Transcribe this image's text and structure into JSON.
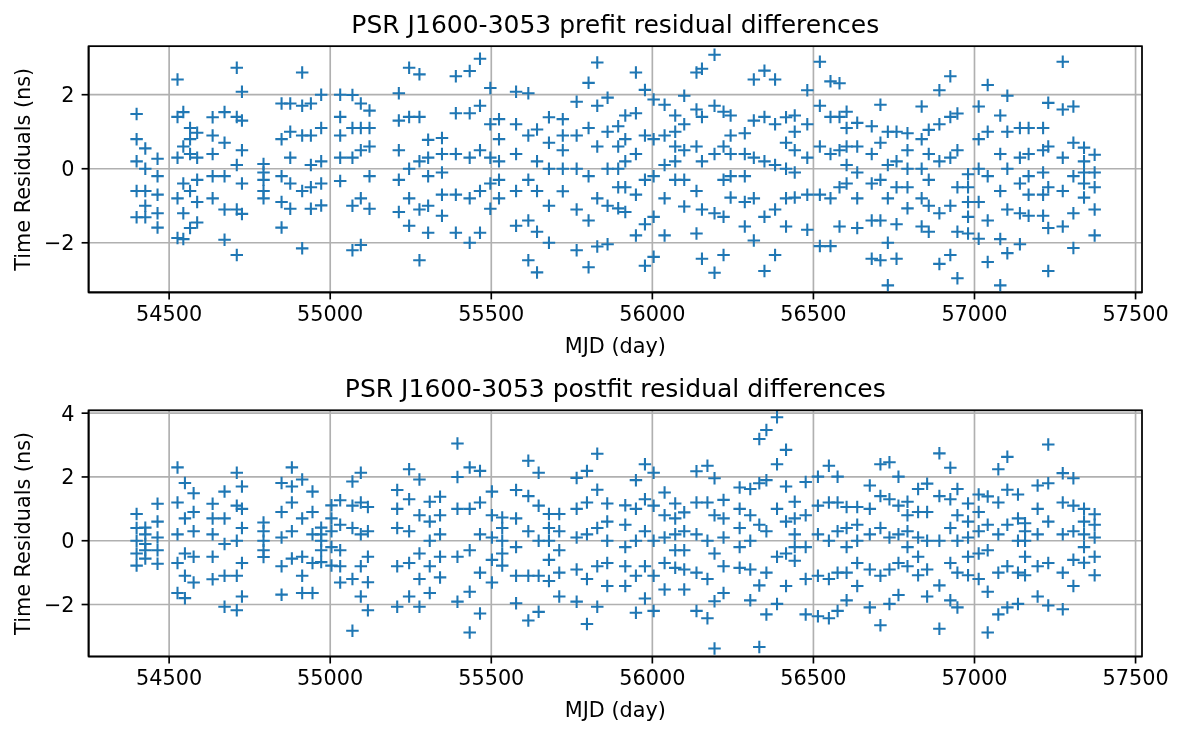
{
  "chart_data": [
    {
      "type": "scatter",
      "title": "PSR J1600-3053 prefit residual differences",
      "xlabel": "MJD (day)",
      "ylabel": "Time Residuals (ns)",
      "color": "#1f77b4",
      "marker": "cross",
      "grid": true,
      "xlim": [
        54250,
        57520
      ],
      "ylim": [
        -3.34,
        3.31
      ],
      "xticks": [
        54500,
        55000,
        55500,
        56000,
        56500,
        57000,
        57500
      ],
      "yticks": [
        {
          "value": -2,
          "label": "−2"
        },
        0,
        2
      ],
      "x": [
        54399,
        54426,
        54464,
        54526,
        54544,
        54565,
        54587,
        54635,
        54672,
        54710,
        54726,
        54793,
        54849,
        54876,
        54913,
        54940,
        54972,
        55031,
        55069,
        55095,
        55122,
        55213,
        55245,
        55277,
        55304,
        55347,
        55390,
        55433,
        55465,
        55497,
        55524,
        55577,
        55615,
        55642,
        55679,
        55722,
        55765,
        55802,
        55829,
        55861,
        55894,
        55916,
        55949,
        55977,
        56004,
        56038,
        56071,
        56099,
        56137,
        56154,
        56193,
        56221,
        56243,
        56287,
        56315,
        56348,
        56381,
        56415,
        56442,
        56481,
        56520,
        56553,
        56581,
        56603,
        56636,
        56681,
        56708,
        56731,
        56758,
        56792,
        56836,
        56858,
        56891,
        56925,
        56947,
        56980,
        57013,
        57041,
        57080,
        57102,
        57141,
        57168,
        57213,
        57229,
        57274,
        57307,
        57340,
        57373,
        54399,
        54426,
        54464,
        54526,
        54544,
        54565,
        54587,
        54635,
        54672,
        54710,
        54726,
        54793,
        54849,
        54876,
        54913,
        54940,
        54972,
        55031,
        55069,
        55095,
        55122,
        55213,
        55245,
        55277,
        55304,
        55347,
        55390,
        55433,
        55465,
        55497,
        55524,
        55577,
        55615,
        55642,
        55679,
        55722,
        55765,
        55802,
        55829,
        55861,
        55894,
        55916,
        55949,
        55977,
        56004,
        56038,
        56071,
        56099,
        56137,
        56154,
        56193,
        56221,
        56243,
        56287,
        56315,
        56348,
        56381,
        56415,
        56442,
        56481,
        56520,
        56553,
        56581,
        56603,
        56636,
        56681,
        56708,
        56731,
        56758,
        56792,
        56836,
        56858,
        56891,
        56925,
        56947,
        56980,
        57013,
        57041,
        57080,
        57102,
        57141,
        57168,
        57213,
        57229,
        57274,
        57307,
        57340,
        57373,
        54399,
        54426,
        54464,
        54526,
        54544,
        54565,
        54587,
        54635,
        54672,
        54710,
        54726,
        54793,
        54849,
        54876,
        54913,
        54940,
        54972,
        55031,
        55069,
        55095,
        55122,
        55213,
        55245,
        55277,
        55304,
        55347,
        55390,
        55433,
        55465,
        55497,
        55524,
        55577,
        55615,
        55642,
        55679,
        55722,
        55765,
        55802,
        55829,
        55861,
        55894,
        55916,
        55949,
        55977,
        56004,
        56038,
        56071,
        56099,
        56137,
        56154,
        56193,
        56221,
        56243,
        56287,
        56315,
        56348,
        56381,
        56415,
        56442,
        56481,
        56520,
        56553,
        56581,
        56603,
        56636,
        56681,
        56708,
        56731,
        56758,
        56792,
        56836,
        56858,
        56891,
        56925,
        56947,
        56980,
        57013,
        57041,
        57080,
        57102,
        57141,
        57168,
        57213,
        57229,
        57274,
        57307,
        57340,
        57373,
        54399,
        54426,
        54464,
        54526,
        54544,
        54565,
        54587,
        54635,
        54672,
        54710,
        54726,
        54793,
        54849,
        54876,
        54913,
        54940,
        54972,
        55031,
        55069,
        55095,
        55122,
        55213,
        55245,
        55277,
        55304,
        55347,
        55390,
        55433,
        55465,
        55497,
        55524,
        55577,
        55615,
        55642,
        55679,
        55722,
        55765,
        55802,
        55829,
        55861,
        55894,
        55916,
        55949,
        55977,
        56004,
        56038,
        56071,
        56099,
        56137,
        56154,
        56193,
        56221,
        56243,
        56287,
        56315,
        56348,
        56381,
        56415,
        56442,
        56481,
        56520,
        56553,
        56581,
        56603,
        56636,
        56681,
        56708,
        56731,
        56758,
        56792,
        56836,
        56858,
        56891,
        56925,
        56947,
        56980,
        57013,
        57041,
        57080,
        57102,
        57141,
        57168,
        57213,
        57229,
        57274,
        57307,
        57340,
        57373,
        54399,
        54426,
        54464,
        54526,
        54544,
        54565,
        54587,
        54635,
        54672,
        54710,
        54726,
        54793,
        54849,
        54876,
        54913,
        54940,
        54972,
        55031,
        55069,
        55095,
        55122,
        55213,
        55245,
        55277,
        55304,
        55347,
        55390,
        55433,
        55465,
        55497,
        55524,
        55577,
        55615,
        55642,
        55679,
        55722,
        55765,
        55802,
        55829,
        55861,
        55894,
        55916,
        55949,
        55977,
        56004,
        56038,
        56071,
        56099,
        56137,
        56154,
        56193,
        56221,
        56243,
        56287,
        56315,
        56348,
        56381,
        56415,
        56442,
        56481,
        56520,
        56553,
        56581,
        56603,
        56636,
        56681,
        56708,
        56731,
        56758,
        56792,
        56836,
        56858,
        56891,
        56925,
        56947,
        56980,
        57013,
        57041,
        57080,
        57102,
        57141,
        57168,
        57213,
        57229,
        57274,
        57307,
        57340,
        57373
      ],
      "values": [
        1.48,
        0.55,
        0.27,
        2.41,
        1.53,
        1.1,
        0.97,
        1.39,
        1.53,
        2.73,
        2.08,
        0.13,
        1.76,
        1.76,
        2.6,
        1.76,
        2.0,
        2.0,
        1.99,
        1.76,
        1.57,
        2.04,
        2.73,
        2.55,
        0.78,
        0.83,
        2.5,
        2.64,
        2.97,
        2.18,
        1.34,
        2.08,
        2.04,
        1.06,
        1.39,
        1.34,
        1.81,
        2.32,
        2.87,
        1.92,
        1.15,
        1.44,
        2.6,
        2.13,
        1.87,
        1.73,
        1.44,
        1.97,
        2.6,
        2.7,
        3.08,
        1.54,
        1.44,
        0.96,
        2.41,
        2.65,
        2.41,
        1.39,
        1.44,
        2.12,
        2.89,
        2.36,
        2.31,
        1.54,
        1.24,
        1.15,
        1.73,
        1.0,
        1.0,
        0.96,
        1.68,
        1.05,
        2.12,
        2.5,
        1.49,
        -0.15,
        1.68,
        2.26,
        1.44,
        1.97,
        1.1,
        1.1,
        1.1,
        1.78,
        2.89,
        1.68,
        0.57,
        0.38,
        0.8,
        0.0,
        -0.2,
        1.4,
        0.6,
        0.8,
        0.3,
        0.9,
        0.7,
        1.4,
        1.3,
        -0.1,
        0.8,
        1.0,
        1.7,
        0.9,
        1.1,
        1.4,
        1.1,
        1.1,
        1.1,
        1.3,
        1.4,
        1.4,
        0.3,
        0.4,
        1.5,
        1.5,
        1.7,
        1.2,
        0.8,
        1.2,
        0.9,
        0.2,
        0.7,
        0.9,
        0.9,
        1.1,
        1.7,
        1.0,
        0.6,
        0.8,
        1.5,
        0.9,
        0.8,
        0.9,
        1.0,
        1.2,
        1.6,
        1.4,
        1.7,
        0.6,
        0.9,
        0.4,
        1.3,
        1.4,
        1.2,
        0.7,
        1.0,
        1.2,
        1.7,
        1.4,
        1.4,
        1.1,
        0.6,
        0.4,
        0.7,
        0.1,
        0.2,
        0.5,
        0.8,
        0.4,
        1.2,
        1.4,
        0.5,
        -0.5,
        0.8,
        1.0,
        0.4,
        1.0,
        0.3,
        0.4,
        0.5,
        0.6,
        1.6,
        0.7,
        0.2,
        -0.1,
        0.2,
        -0.6,
        -0.7,
        0.3,
        -0.4,
        0.4,
        -0.3,
        0.4,
        -0.2,
        0.1,
        0.5,
        -0.3,
        -0.2,
        0.3,
        0.9,
        0.1,
        0.2,
        0.9,
        0.3,
        0.5,
        0.6,
        0.5,
        0.0,
        0.2,
        -0.2,
        -0.1,
        0.4,
        0.3,
        0.5,
        0.3,
        0.2,
        0.4,
        -0.3,
        -0.6,
        0.0,
        0.5,
        0.0,
        -0.2,
        0.6,
        0.0,
        0.0,
        0.2,
        0.4,
        -0.3,
        -0.2,
        0.1,
        0.6,
        0.5,
        0.6,
        0.2,
        0.4,
        -0.3,
        0.4,
        -0.2,
        0.3,
        0.2,
        0.1,
        0.0,
        0.5,
        0.3,
        0.6,
        0.4,
        0.5,
        0.6,
        -0.1,
        -0.4,
        -0.3,
        -0.8,
        -0.5,
        0.0,
        0.0,
        -0.3,
        0.2,
        0.3,
        -0.5,
        -0.9,
        0.0,
        -0.2,
        -0.6,
        0.0,
        -0.4,
        -0.2,
        -0.1,
        -0.5,
        0.3,
        -0.2,
        -0.1,
        -0.5,
        -0.6,
        -1.0,
        -1.2,
        -0.8,
        -1.2,
        -0.6,
        -0.9,
        -0.2,
        -1.1,
        -1.1,
        -0.4,
        -0.6,
        -0.9,
        -0.4,
        -0.6,
        -0.5,
        -0.4,
        0.3,
        -1.0,
        -0.8,
        -0.2,
        -0.3,
        -0.8,
        -1.1,
        -1.0,
        -0.7,
        -0.7,
        -0.8,
        -0.6,
        -0.4,
        -0.3,
        -0.6,
        -1.4,
        -1.7,
        -1.0,
        0.0,
        -1.1,
        -1.4,
        -0.8,
        -1.0,
        -0.5,
        -0.5,
        -0.7,
        -1.5,
        -1.3,
        -0.8,
        0.2,
        -0.3,
        -0.6,
        -1.1,
        -1.2,
        -1.3,
        -0.2,
        -0.9,
        -0.8,
        -1.3,
        -1.1,
        -0.8,
        -0.1,
        -0.7,
        -0.7,
        -0.8,
        -0.5,
        0.1,
        -0.8,
        -1.4,
        -1.4,
        -2.0,
        -1.5,
        -0.5,
        -0.8,
        -1.0,
        -1.2,
        -1.0,
        -1.7,
        -1.3,
        -0.9,
        -1.4,
        -1.9,
        -1.1,
        -1.2,
        -0.7,
        -0.7,
        -1.6,
        -0.6,
        -1.2,
        -0.4,
        -1.1,
        -1.31,
        -1.31,
        -1.59,
        -1.87,
        -1.9,
        -1.6,
        -1.45,
        -0.8,
        -1.92,
        -2.33,
        -1.22,
        -0.8,
        -1.59,
        -1.08,
        -2.15,
        -1.08,
        -0.99,
        -0.33,
        -2.2,
        -2.06,
        -1.08,
        -1.17,
        -1.54,
        -2.47,
        -1.73,
        -1.27,
        -1.73,
        -2.0,
        -1.73,
        -1.08,
        -0.8,
        -1.54,
        -2.47,
        -2.8,
        -2.0,
        -0.61,
        -2.2,
        -2.66,
        -2.1,
        -2.04,
        -1.07,
        -1.17,
        -1.8,
        -2.62,
        -2.38,
        -1.8,
        -0.3,
        -1.02,
        -1.75,
        -2.43,
        -2.81,
        -2.33,
        -0.78,
        -1.56,
        -1.94,
        -2.76,
        -2.33,
        -1.56,
        -0.78,
        -1.65,
        -2.09,
        -2.09,
        -1.56,
        -0.4,
        -1.6,
        -2.43,
        -2.47,
        -3.15,
        -2.43,
        -1.07,
        -1.56,
        -1.7,
        -2.57,
        -2.33,
        -2.96,
        -1.75,
        -1.89,
        -2.52,
        -3.15,
        -2.28,
        -2.04,
        -1.27,
        -1.27,
        -2.76,
        -1.56,
        -2.14,
        -0.78,
        -1.8
      ]
    },
    {
      "type": "scatter",
      "title": "PSR J1600-3053 postfit residual differences",
      "xlabel": "MJD (day)",
      "ylabel": "Time Residuals (ns)",
      "color": "#1f77b4",
      "marker": "cross",
      "grid": true,
      "xlim": [
        54250,
        57520
      ],
      "ylim": [
        -3.63,
        4.09
      ],
      "xticks": [
        54500,
        55000,
        55500,
        56000,
        56500,
        57000,
        57500
      ],
      "yticks": [
        {
          "value": -2,
          "label": "−2"
        },
        0,
        2,
        4
      ],
      "x": [
        54399,
        54426,
        54464,
        54526,
        54549,
        54576,
        54635,
        54672,
        54710,
        54726,
        54793,
        54849,
        54881,
        54913,
        54945,
        54972,
        55004,
        55031,
        55069,
        55095,
        55117,
        55208,
        55245,
        55277,
        55309,
        55341,
        55395,
        55433,
        55465,
        55502,
        55534,
        55577,
        55615,
        55647,
        55679,
        55711,
        55765,
        55797,
        55829,
        55860,
        55916,
        55949,
        55977,
        56004,
        56038,
        56071,
        56099,
        56137,
        56171,
        56193,
        56221,
        56271,
        56304,
        56332,
        56354,
        56387,
        56415,
        56442,
        56476,
        56514,
        56548,
        56575,
        56603,
        56636,
        56675,
        56708,
        56736,
        56764,
        56792,
        56825,
        56853,
        56891,
        56925,
        56947,
        56980,
        57013,
        57041,
        57074,
        57102,
        57135,
        57157,
        57196,
        57229,
        57274,
        57307,
        57340,
        57373,
        54399,
        54426,
        54464,
        54526,
        54549,
        54576,
        54635,
        54672,
        54710,
        54726,
        54793,
        54849,
        54881,
        54913,
        54945,
        54972,
        55004,
        55031,
        55069,
        55095,
        55117,
        55208,
        55245,
        55277,
        55309,
        55341,
        55395,
        55433,
        55465,
        55502,
        55534,
        55577,
        55615,
        55647,
        55679,
        55711,
        55765,
        55797,
        55829,
        55860,
        55916,
        55949,
        55977,
        56004,
        56038,
        56071,
        56099,
        56137,
        56171,
        56193,
        56221,
        56271,
        56304,
        56332,
        56354,
        56387,
        56415,
        56442,
        56476,
        56514,
        56548,
        56575,
        56603,
        56636,
        56675,
        56708,
        56736,
        56764,
        56792,
        56825,
        56853,
        56891,
        56925,
        56947,
        56980,
        57013,
        57041,
        57074,
        57102,
        57135,
        57157,
        57196,
        57229,
        57274,
        57307,
        57340,
        57373,
        54399,
        54426,
        54464,
        54526,
        54549,
        54576,
        54635,
        54672,
        54710,
        54726,
        54793,
        54849,
        54881,
        54913,
        54945,
        54972,
        55004,
        55031,
        55069,
        55095,
        55117,
        55208,
        55245,
        55277,
        55309,
        55341,
        55395,
        55433,
        55465,
        55502,
        55534,
        55577,
        55615,
        55647,
        55679,
        55711,
        55765,
        55797,
        55829,
        55860,
        55916,
        55949,
        55977,
        56004,
        56038,
        56071,
        56099,
        56137,
        56171,
        56193,
        56221,
        56271,
        56304,
        56332,
        56354,
        56387,
        56415,
        56442,
        56476,
        56514,
        56548,
        56575,
        56603,
        56636,
        56675,
        56708,
        56736,
        56764,
        56792,
        56825,
        56853,
        56891,
        56925,
        56947,
        56980,
        57013,
        57041,
        57074,
        57102,
        57135,
        57157,
        57196,
        57229,
        57274,
        57307,
        57340,
        57373,
        54399,
        54426,
        54464,
        54526,
        54549,
        54576,
        54635,
        54672,
        54710,
        54726,
        54793,
        54849,
        54881,
        54913,
        54945,
        54972,
        55004,
        55031,
        55069,
        55095,
        55117,
        55208,
        55245,
        55277,
        55309,
        55341,
        55395,
        55433,
        55465,
        55502,
        55534,
        55577,
        55615,
        55647,
        55679,
        55711,
        55765,
        55797,
        55829,
        55860,
        55916,
        55949,
        55977,
        56004,
        56038,
        56071,
        56099,
        56137,
        56171,
        56193,
        56221,
        56271,
        56304,
        56332,
        56354,
        56387,
        56415,
        56442,
        56476,
        56514,
        56548,
        56575,
        56603,
        56636,
        56675,
        56708,
        56736,
        56764,
        56792,
        56825,
        56853,
        56891,
        56925,
        56947,
        56980,
        57013,
        57041,
        57074,
        57102,
        57135,
        57157,
        57196,
        57229,
        57274,
        57307,
        57340,
        57373,
        54399,
        54426,
        54464,
        54526,
        54549,
        54576,
        54635,
        54672,
        54710,
        54726,
        54793,
        54849,
        54881,
        54913,
        54945,
        54972,
        55004,
        55031,
        55069,
        55095,
        55117,
        55208,
        55245,
        55277,
        55309,
        55341,
        55395,
        55433,
        55465,
        55502,
        55534,
        55577,
        55615,
        55647,
        55679,
        55711,
        55765,
        55797,
        55829,
        55860,
        55916,
        55949,
        55977,
        56004,
        56038,
        56071,
        56099,
        56137,
        56171,
        56193,
        56221,
        56271,
        56304,
        56332,
        56354,
        56387,
        56415,
        56442,
        56476,
        56514,
        56548,
        56575,
        56603,
        56636,
        56675,
        56708,
        56736,
        56764,
        56792,
        56825,
        56853,
        56891,
        56925,
        56947,
        56980,
        57013,
        57041,
        57074,
        57102,
        57135,
        57157,
        57196,
        57229,
        57274,
        57307,
        57340,
        57373
      ],
      "values": [
        0.84,
        0.41,
        1.16,
        2.3,
        1.81,
        1.49,
        1.16,
        1.54,
        2.13,
        1.7,
        0.57,
        1.81,
        2.3,
        1.92,
        1.54,
        0.41,
        1.11,
        1.27,
        1.86,
        2.13,
        1.06,
        1.59,
        2.24,
        1.92,
        1.22,
        1.38,
        3.05,
        2.3,
        2.19,
        1.54,
        0.73,
        1.59,
        2.51,
        2.13,
        0.84,
        0.84,
        1.97,
        2.19,
        2.73,
        1.17,
        1.11,
        1.9,
        2.4,
        2.13,
        1.51,
        1.17,
        0.89,
        2.18,
        2.35,
        1.96,
        1.28,
        1.67,
        1.62,
        3.19,
        3.47,
        3.87,
        2.85,
        1.22,
        1.84,
        2.01,
        2.35,
        2.01,
        1.06,
        1.06,
        1.73,
        2.4,
        2.46,
        2.01,
        1.22,
        1.62,
        1.79,
        2.74,
        2.29,
        1.62,
        1.17,
        1.45,
        1.39,
        2.24,
        2.63,
        1.45,
        0.55,
        1.73,
        3.02,
        2.12,
        1.96,
        1.0,
        0.83,
        0.4,
        0.2,
        0.6,
        1.2,
        0.7,
        0.9,
        0.7,
        0.7,
        1.1,
        1.0,
        0.3,
        0.9,
        1.7,
        0.7,
        0.9,
        0.2,
        0.7,
        0.5,
        1.1,
        1.2,
        0.3,
        1.0,
        1.3,
        0.8,
        0.6,
        0.8,
        2.0,
        1.0,
        1.2,
        0.8,
        0.4,
        0.7,
        1.4,
        1.1,
        0.4,
        0.3,
        1.0,
        1.2,
        1.6,
        0.6,
        0.5,
        1.0,
        1.3,
        1.1,
        0.8,
        0.7,
        0.3,
        1.2,
        1.2,
        0.8,
        0.7,
        1.0,
        0.8,
        1.8,
        1.9,
        2.4,
        1.7,
        0.7,
        0.8,
        1.1,
        1.2,
        1.2,
        0.4,
        0.5,
        1.0,
        1.4,
        1.3,
        1.1,
        0.8,
        0.9,
        0.9,
        1.4,
        1.3,
        0.8,
        0.6,
        0.9,
        0.5,
        1.2,
        1.6,
        0.7,
        0.3,
        1.0,
        1.8,
        1.2,
        1.1,
        0.6,
        0.5,
        0.0,
        -0.1,
        0.1,
        0.2,
        -0.4,
        0.3,
        0.2,
        -0.1,
        0.0,
        0.4,
        0.0,
        0.1,
        1.2,
        -0.5,
        0.2,
        0.0,
        0.3,
        -0.3,
        0.4,
        0.2,
        -0.5,
        0.4,
        0.3,
        -0.4,
        0.0,
        0.2,
        1.0,
        -0.3,
        0.2,
        0.1,
        0.0,
        -0.2,
        0.3,
        0.0,
        0.0,
        -0.3,
        0.1,
        0.2,
        0.4,
        0.0,
        -0.2,
        0.0,
        0.3,
        0.0,
        0.1,
        0.2,
        -0.3,
        0.2,
        0.0,
        -0.4,
        0.1,
        0.4,
        0.0,
        0.5,
        0.3,
        1.0,
        0.6,
        0.2,
        -0.2,
        0.2,
        0.0,
        0.3,
        -0.2,
        0.0,
        0.2,
        0.4,
        0.1,
        0.2,
        0.3,
        0.1,
        0.0,
        0.0,
        0.4,
        0.0,
        0.1,
        0.3,
        -0.3,
        0.2,
        0.5,
        0.0,
        0.0,
        0.2,
        0.6,
        0.2,
        0.3,
        0.2,
        0.1,
        -0.4,
        -0.3,
        -0.3,
        -0.7,
        -1.1,
        -0.5,
        -0.5,
        -1.1,
        -1.1,
        -0.7,
        -0.3,
        -0.8,
        0.3,
        -1.1,
        -0.7,
        -0.3,
        -0.2,
        -0.8,
        -1.2,
        -0.8,
        -1.3,
        -0.8,
        -0.7,
        -1.2,
        -0.8,
        -0.5,
        -0.5,
        -1.6,
        -1.0,
        -0.6,
        -0.4,
        -1.1,
        -1.1,
        -1.1,
        -0.6,
        -1.0,
        -0.9,
        -1.2,
        -0.8,
        -0.7,
        -0.8,
        -1.1,
        -0.8,
        -1.1,
        -0.7,
        -0.3,
        -0.9,
        -1.0,
        -1.2,
        -1.9,
        -0.8,
        -0.2,
        -0.9,
        -1.4,
        -1.0,
        -0.5,
        -0.4,
        -0.2,
        -1.2,
        -1.1,
        -1.2,
        -1.0,
        -1.0,
        -0.7,
        -0.9,
        -1.1,
        -0.9,
        -0.7,
        -0.2,
        -0.5,
        -0.9,
        -1.4,
        -0.7,
        -1.0,
        -0.5,
        -0.4,
        -1.6,
        -1.0,
        -0.8,
        -1.0,
        -0.5,
        -0.8,
        -0.7,
        -1.0,
        -0.6,
        -0.2,
        -0.5,
        -0.78,
        -0.56,
        -0.72,
        -1.64,
        -1.8,
        -1.31,
        -1.21,
        -2.07,
        -2.18,
        -1.75,
        -0.51,
        -1.69,
        -0.56,
        -1.64,
        -1.64,
        -0.67,
        -0.78,
        -1.31,
        -2.82,
        -1.75,
        -2.18,
        -2.07,
        -1.75,
        -2.07,
        -1.64,
        -1.15,
        -1.91,
        -2.88,
        -2.28,
        -1.31,
        -0.78,
        -1.96,
        -2.5,
        -2.23,
        -1.26,
        -1.75,
        -1.91,
        -2.61,
        -2.07,
        -1.42,
        -1.42,
        -2.26,
        -1.81,
        -2.2,
        -1.53,
        -0.85,
        -1.53,
        -2.2,
        -2.43,
        -3.38,
        -1.64,
        -0.85,
        -1.87,
        -3.33,
        -2.31,
        -1.98,
        -1.42,
        -0.63,
        -2.31,
        -2.37,
        -2.43,
        -2.2,
        -1.87,
        -1.42,
        -2.09,
        -2.65,
        -1.98,
        -1.7,
        -0.8,
        -1.08,
        -1.75,
        -2.76,
        -1.87,
        -2.09,
        -1.08,
        -1.2,
        -2.88,
        -2.31,
        -2.09,
        -1.98,
        -1.08,
        -1.75,
        -2.03,
        -2.15,
        -1.42,
        -0.69,
        -1.08
      ]
    }
  ]
}
